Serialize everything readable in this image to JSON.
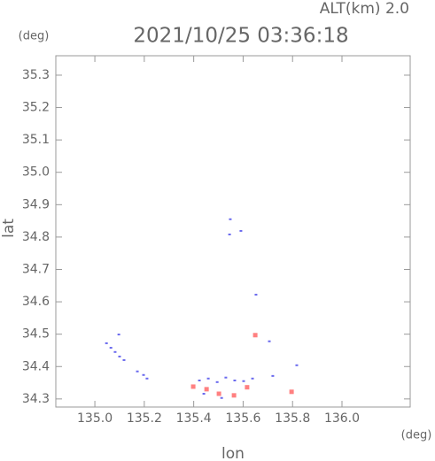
{
  "chart_data": {
    "type": "scatter",
    "title": "2021/10/25 03:36:18",
    "annotation": "ALT(km) 2.0",
    "x_unit": "(deg)",
    "y_unit": "(deg)",
    "x_label": "lon",
    "y_label": "lat",
    "xlim": [
      134.842,
      136.276
    ],
    "ylim": [
      34.275,
      35.36
    ],
    "xticks": [
      {
        "value": 135,
        "label": "135.0"
      },
      135.2,
      135.4,
      135.6,
      135.8,
      {
        "value": 136,
        "label": "136.0"
      }
    ],
    "yticks": [
      34.3,
      34.4,
      34.5,
      34.6,
      34.7,
      34.8,
      34.9,
      {
        "value": 35,
        "label": "35.0"
      },
      35.1,
      35.2,
      35.3
    ],
    "series": [
      {
        "color": "#6a6aee",
        "x": [
          135.548,
          135.545,
          135.591,
          135.652,
          135.706,
          135.047,
          135.065,
          135.082,
          135.1,
          135.118,
          135.097,
          135.172,
          135.197,
          135.211,
          135.423,
          135.459,
          135.495,
          135.53,
          135.566,
          135.602,
          135.638,
          135.441,
          135.513,
          135.72,
          135.817
        ],
        "values": [
          34.855,
          34.808,
          34.819,
          34.622,
          34.478,
          34.472,
          34.458,
          34.445,
          34.431,
          34.42,
          34.499,
          34.385,
          34.374,
          34.363,
          34.357,
          34.363,
          34.352,
          34.366,
          34.357,
          34.355,
          34.363,
          34.316,
          34.303,
          34.371,
          34.404
        ]
      },
      {
        "color": "#ff8080",
        "x": [
          135.398,
          135.452,
          135.502,
          135.563,
          135.616,
          135.796,
          135.649
        ],
        "values": [
          34.338,
          34.33,
          34.316,
          34.311,
          34.336,
          34.322,
          34.497
        ]
      }
    ]
  }
}
